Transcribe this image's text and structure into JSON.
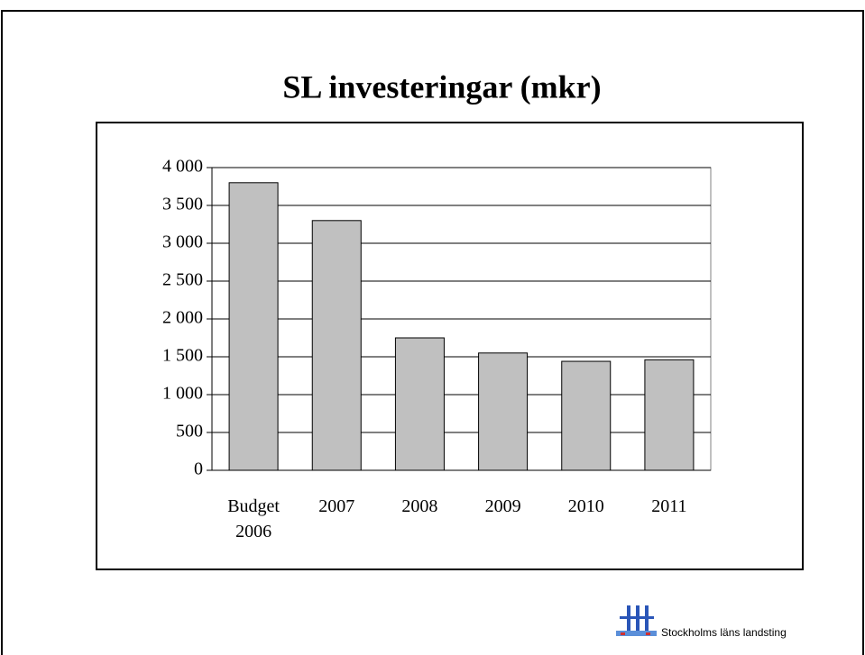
{
  "chart_data": {
    "type": "bar",
    "title": "SL investeringar (mkr)",
    "categories": [
      "Budget 2006",
      "2007",
      "2008",
      "2009",
      "2010",
      "2011"
    ],
    "values": [
      3800,
      3300,
      1750,
      1550,
      1440,
      1460
    ],
    "color": "#c0c0c0",
    "ylim": [
      0,
      4000
    ],
    "yticks": [
      0,
      500,
      {
        "value": 1000,
        "label": "1 000"
      },
      {
        "value": 1500,
        "label": "1 500"
      },
      {
        "value": 2000,
        "label": "2 000"
      },
      {
        "value": 2500,
        "label": "2 500"
      },
      {
        "value": 3000,
        "label": "3 000"
      },
      {
        "value": 3500,
        "label": "3 500"
      },
      {
        "value": 4000,
        "label": "4 000"
      }
    ],
    "grid": true
  },
  "footer": {
    "text": "Stockholms läns landsting"
  }
}
